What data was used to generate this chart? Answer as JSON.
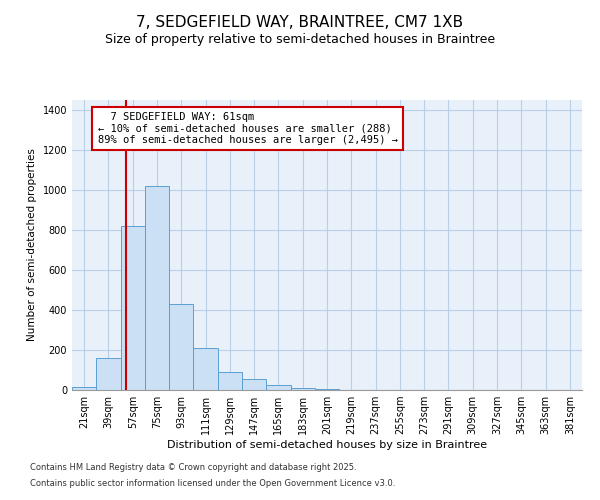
{
  "title_line1": "7, SEDGEFIELD WAY, BRAINTREE, CM7 1XB",
  "title_line2": "Size of property relative to semi-detached houses in Braintree",
  "xlabel": "Distribution of semi-detached houses by size in Braintree",
  "ylabel": "Number of semi-detached properties",
  "bar_color": "#cce0f5",
  "bar_edge_color": "#5a9fd4",
  "grid_color": "#b8cfe8",
  "background_color": "#e8f0fa",
  "categories": [
    "21sqm",
    "39sqm",
    "57sqm",
    "75sqm",
    "93sqm",
    "111sqm",
    "129sqm",
    "147sqm",
    "165sqm",
    "183sqm",
    "201sqm",
    "219sqm",
    "237sqm",
    "255sqm",
    "273sqm",
    "291sqm",
    "309sqm",
    "327sqm",
    "345sqm",
    "363sqm",
    "381sqm"
  ],
  "values": [
    15,
    160,
    820,
    1020,
    430,
    210,
    90,
    55,
    25,
    10,
    3,
    0,
    0,
    0,
    0,
    0,
    0,
    0,
    0,
    0,
    0
  ],
  "property_label": "7 SEDGEFIELD WAY: 61sqm",
  "pct_smaller": 10,
  "pct_smaller_count": 288,
  "pct_larger": 89,
  "pct_larger_count": 2495,
  "red_line_color": "#cc0000",
  "annotation_box_color": "#cc0000",
  "vline_x": 1.72,
  "ylim": [
    0,
    1450
  ],
  "yticks": [
    0,
    200,
    400,
    600,
    800,
    1000,
    1200,
    1400
  ],
  "title1_fontsize": 11,
  "title2_fontsize": 9,
  "xlabel_fontsize": 8,
  "ylabel_fontsize": 7.5,
  "tick_fontsize": 7,
  "annot_fontsize": 7.5,
  "footnote_line1": "Contains HM Land Registry data © Crown copyright and database right 2025.",
  "footnote_line2": "Contains public sector information licensed under the Open Government Licence v3.0."
}
